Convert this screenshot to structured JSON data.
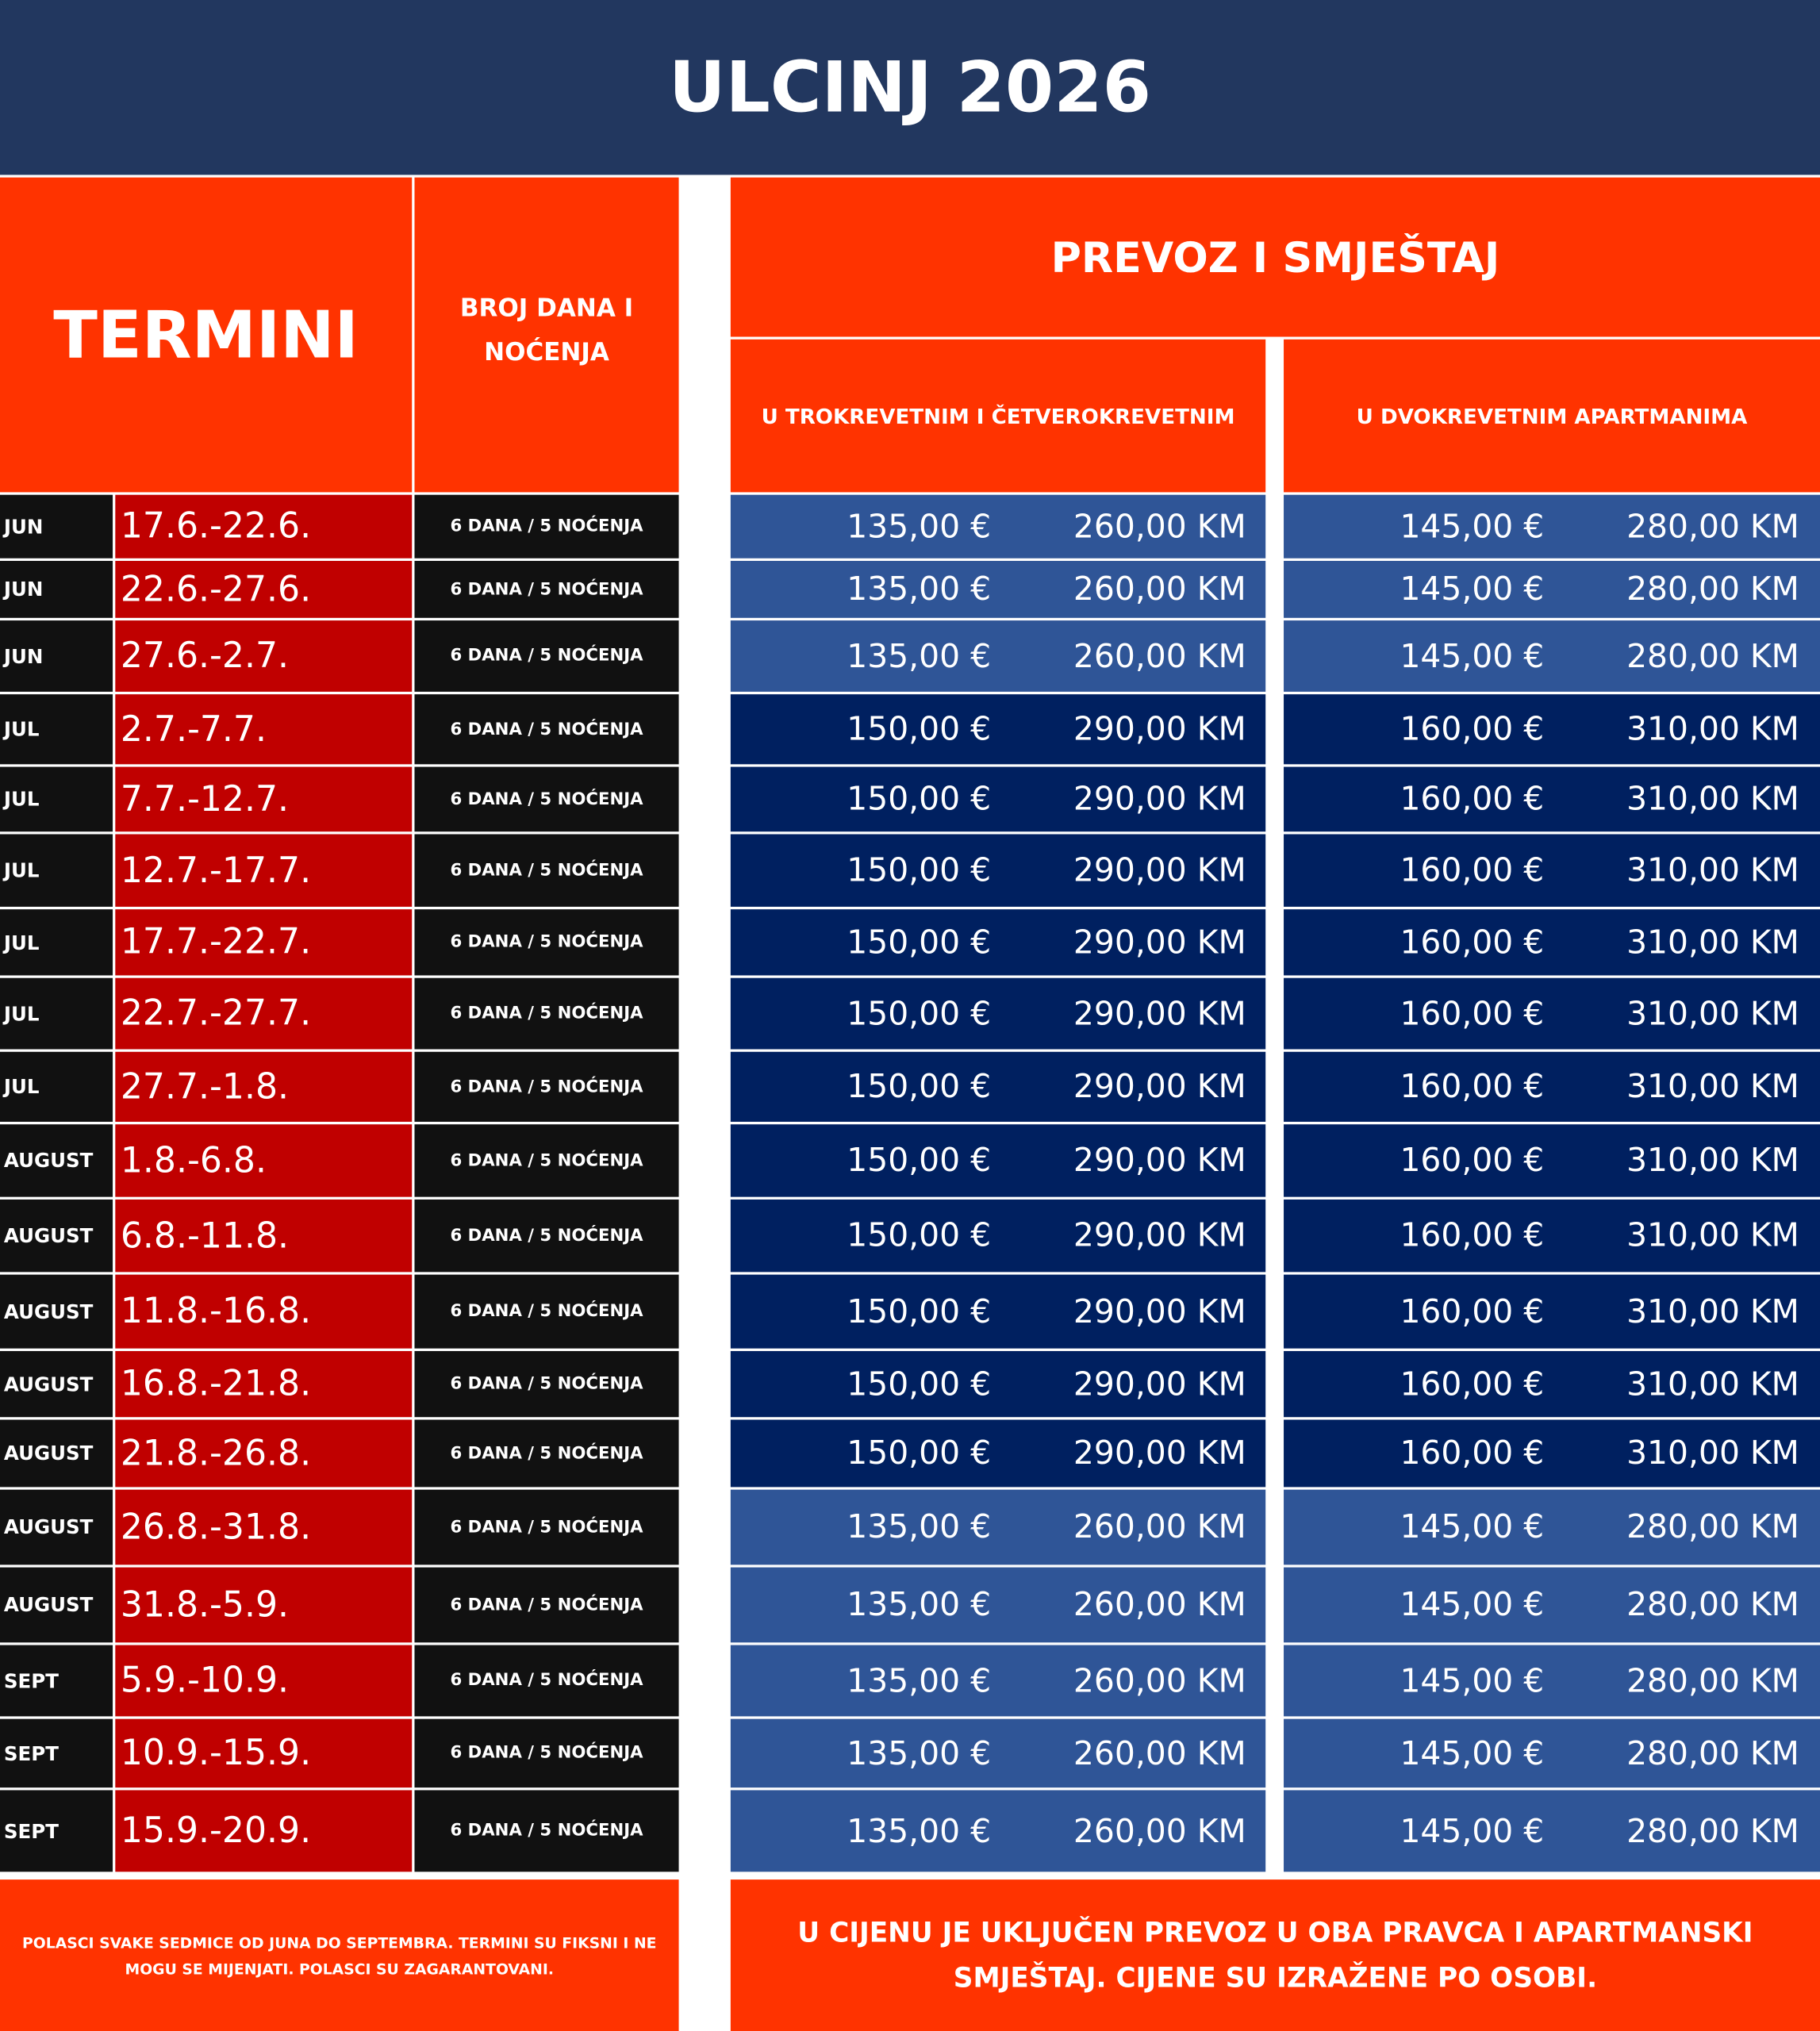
{
  "header": {
    "title": "ULCINJ 2026",
    "termini": "TERMINI",
    "duration": "BROJ DANA I NOĆENJA",
    "transport": "PREVOZ I SMJEŠTAJ",
    "col_a": "U TROKREVETNIM I ČETVEROKREVETNIM",
    "col_b": "U DVOKREVETNIM APARTMANIMA"
  },
  "table": {
    "rows": [
      [
        "JUN",
        "17.6.-22.6.",
        "6 DANA / 5 NOĆENJA",
        "135,00 €",
        "260,00 KM",
        "145,00 €",
        "280,00 KM"
      ],
      [
        "JUN",
        "22.6.-27.6.",
        "6 DANA / 5 NOĆENJA",
        "135,00 €",
        "260,00 KM",
        "145,00 €",
        "280,00 KM"
      ],
      [
        "JUN",
        "27.6.-2.7.",
        "6 DANA / 5 NOĆENJA",
        "135,00 €",
        "260,00 KM",
        "145,00 €",
        "280,00 KM"
      ],
      [
        "JUL",
        "2.7.-7.7.",
        "6 DANA / 5 NOĆENJA",
        "150,00 €",
        "290,00 KM",
        "160,00 €",
        "310,00 KM"
      ],
      [
        "JUL",
        "7.7.-12.7.",
        "6 DANA / 5 NOĆENJA",
        "150,00 €",
        "290,00 KM",
        "160,00 €",
        "310,00 KM"
      ],
      [
        "JUL",
        "12.7.-17.7.",
        "6 DANA / 5 NOĆENJA",
        "150,00 €",
        "290,00 KM",
        "160,00 €",
        "310,00 KM"
      ],
      [
        "JUL",
        "17.7.-22.7.",
        "6 DANA / 5 NOĆENJA",
        "150,00 €",
        "290,00 KM",
        "160,00 €",
        "310,00 KM"
      ],
      [
        "JUL",
        "22.7.-27.7.",
        "6 DANA / 5 NOĆENJA",
        "150,00 €",
        "290,00 KM",
        "160,00 €",
        "310,00 KM"
      ],
      [
        "JUL",
        "27.7.-1.8.",
        "6 DANA / 5 NOĆENJA",
        "150,00 €",
        "290,00 KM",
        "160,00 €",
        "310,00 KM"
      ],
      [
        "AUGUST",
        "1.8.-6.8.",
        "6 DANA / 5 NOĆENJA",
        "150,00 €",
        "290,00 KM",
        "160,00 €",
        "310,00 KM"
      ],
      [
        "AUGUST",
        "6.8.-11.8.",
        "6 DANA / 5 NOĆENJA",
        "150,00 €",
        "290,00 KM",
        "160,00 €",
        "310,00 KM"
      ],
      [
        "AUGUST",
        "11.8.-16.8.",
        "6 DANA / 5 NOĆENJA",
        "150,00 €",
        "290,00 KM",
        "160,00 €",
        "310,00 KM"
      ],
      [
        "AUGUST",
        "16.8.-21.8.",
        "6 DANA / 5 NOĆENJA",
        "150,00 €",
        "290,00 KM",
        "160,00 €",
        "310,00 KM"
      ],
      [
        "AUGUST",
        "21.8.-26.8.",
        "6 DANA / 5 NOĆENJA",
        "150,00 €",
        "290,00 KM",
        "160,00 €",
        "310,00 KM"
      ],
      [
        "AUGUST",
        "26.8.-31.8.",
        "6 DANA / 5 NOĆENJA",
        "135,00 €",
        "260,00 KM",
        "145,00 €",
        "280,00 KM"
      ],
      [
        "AUGUST",
        "31.8.-5.9.",
        "6 DANA / 5 NOĆENJA",
        "135,00 €",
        "260,00 KM",
        "145,00 €",
        "280,00 KM"
      ],
      [
        "SEPT",
        "5.9.-10.9.",
        "6 DANA / 5 NOĆENJA",
        "135,00 €",
        "260,00 KM",
        "145,00 €",
        "280,00 KM"
      ],
      [
        "SEPT",
        "10.9.-15.9.",
        "6 DANA / 5 NOĆENJA",
        "135,00 €",
        "260,00 KM",
        "145,00 €",
        "280,00 KM"
      ],
      [
        "SEPT",
        "15.9.-20.9.",
        "6 DANA / 5 NOĆENJA",
        "135,00 €",
        "260,00 KM",
        "145,00 €",
        "280,00 KM"
      ]
    ]
  },
  "footer": {
    "left": "POLASCI SVAKE SEDMICE OD JUNA DO SEPTEMBRA. TERMINI SU FIKSNI I NE MOGU SE MIJENJATI. POLASCI SU ZAGARANTOVANI.",
    "right": "U CIJENU JE UKLJUČEN PREVOZ U OBA PRAVCA I APARTMANSKI SMJEŠTAJ. CIJENE SU IZRAŽENE PO OSOBI."
  }
}
